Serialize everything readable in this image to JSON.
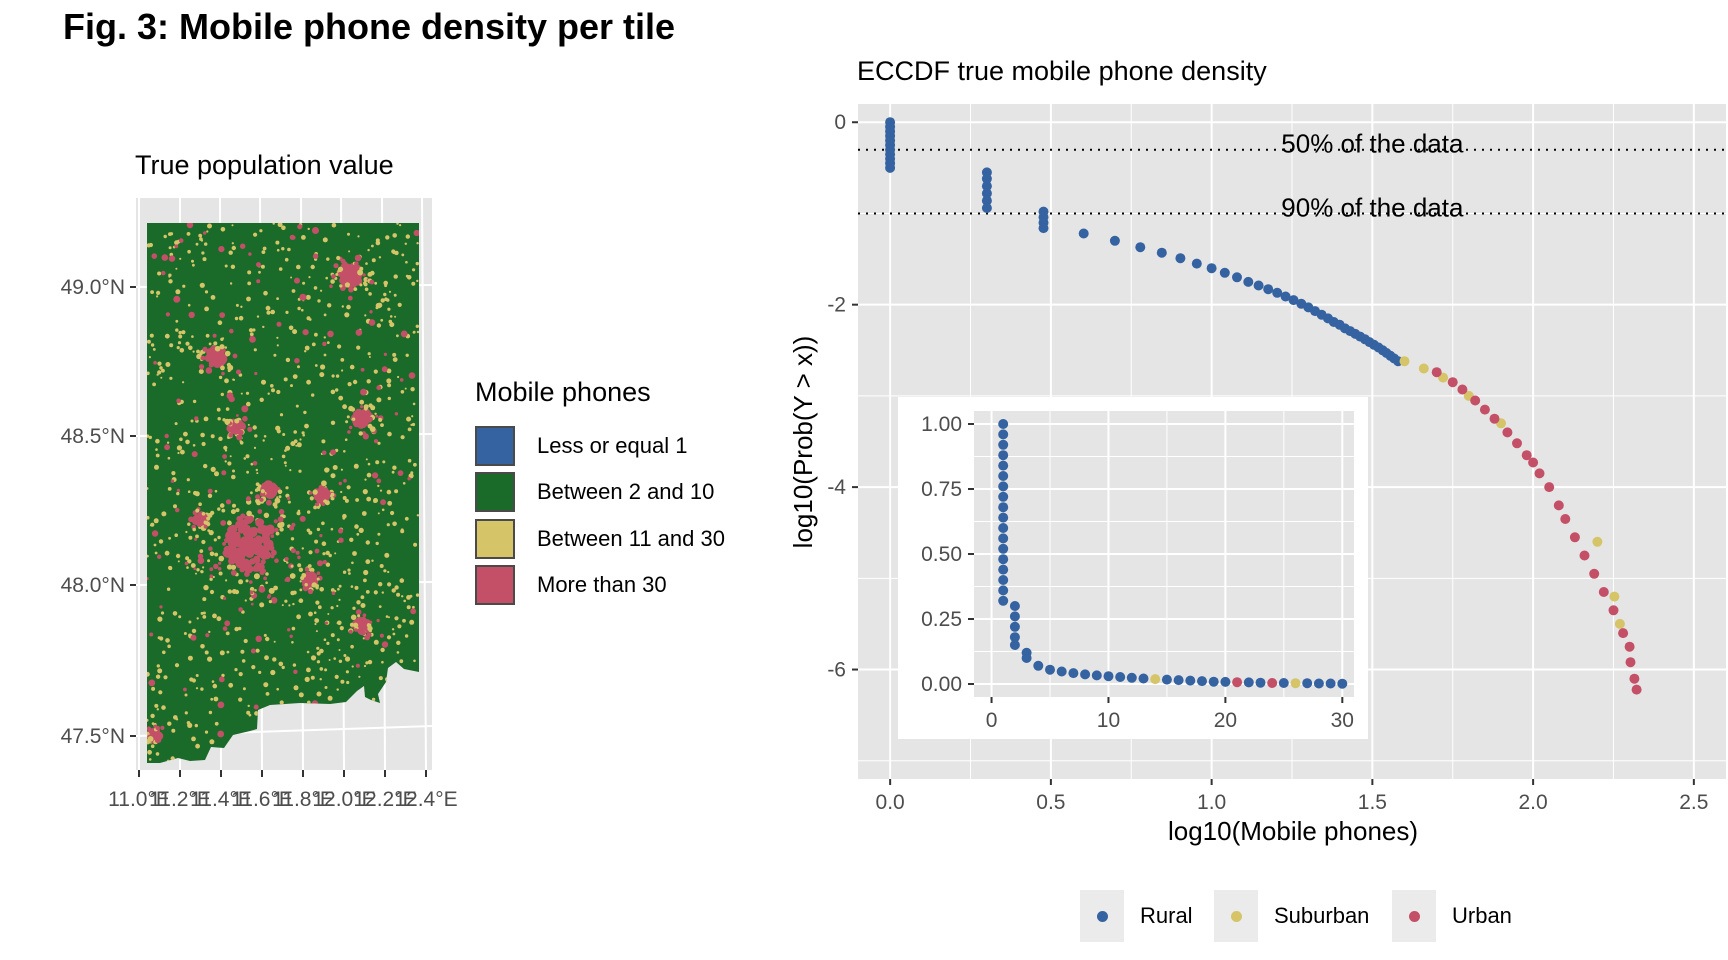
{
  "figure": {
    "title": "Fig. 3: Mobile phone density per tile"
  },
  "colors": {
    "panel_bg": "#e5e5e5",
    "grid": "#ffffff",
    "rural": "#3563a1",
    "rural_alt": "#3f6aa8",
    "green": "#1a6b2a",
    "suburban": "#d6c468",
    "urban": "#c45068",
    "swatch_border": "#4a4a4a"
  },
  "map": {
    "title": "True population value",
    "lat_labels": [
      "49.0°N",
      "48.5°N",
      "48.0°N",
      "47.5°N"
    ],
    "lon_labels": [
      "11.0°E",
      "11.2°E",
      "11.4°E",
      "11.6°E",
      "11.8°E",
      "12.0°E",
      "12.2°E",
      "12.4°E"
    ],
    "legend": {
      "title": "Mobile phones",
      "items": [
        {
          "label": "Less or equal 1",
          "color": "#3563a1"
        },
        {
          "label": "Between 2 and 10",
          "color": "#1a6b2a"
        },
        {
          "label": "Between 11 and 30",
          "color": "#d6c468"
        },
        {
          "label": "More than 30",
          "color": "#c45068"
        }
      ]
    }
  },
  "chart_data": [
    {
      "type": "scatter",
      "title": "ECCDF true mobile phone density",
      "xlabel": "log10(Mobile phones)",
      "ylabel": "log10(Prob(Y > x))",
      "xlim": [
        -0.1,
        2.6
      ],
      "ylim": [
        -7.2,
        0.2
      ],
      "x_ticks": [
        "0.0",
        "0.5",
        "1.0",
        "1.5",
        "2.0",
        "2.5"
      ],
      "x_tick_values": [
        0,
        0.5,
        1.0,
        1.5,
        2.0,
        2.5
      ],
      "y_ticks": [
        "0",
        "-2",
        "-4",
        "-6"
      ],
      "y_tick_values": [
        0,
        -2,
        -4,
        -6
      ],
      "grid": true,
      "annotations": [
        {
          "label": "50% of the data",
          "y": -0.301,
          "x": 1.5
        },
        {
          "label": "90% of the data",
          "y": -1.0,
          "x": 1.5
        }
      ],
      "legend": {
        "position": "bottom",
        "entries": [
          "Rural",
          "Suburban",
          "Urban"
        ]
      },
      "series": [
        {
          "name": "Rural",
          "color": "#3563a1",
          "points": [
            [
              0,
              0
            ],
            [
              0,
              -0.05
            ],
            [
              0,
              -0.1
            ],
            [
              0,
              -0.15
            ],
            [
              0,
              -0.2
            ],
            [
              0,
              -0.25
            ],
            [
              0,
              -0.3
            ],
            [
              0,
              -0.35
            ],
            [
              0,
              -0.4
            ],
            [
              0,
              -0.45
            ],
            [
              0,
              -0.5
            ],
            [
              0.301,
              -0.55
            ],
            [
              0.301,
              -0.62
            ],
            [
              0.301,
              -0.7
            ],
            [
              0.301,
              -0.78
            ],
            [
              0.301,
              -0.86
            ],
            [
              0.301,
              -0.94
            ],
            [
              0.477,
              -0.98
            ],
            [
              0.477,
              -1.04
            ],
            [
              0.477,
              -1.1
            ],
            [
              0.477,
              -1.16
            ],
            [
              0.602,
              -1.22
            ],
            [
              0.699,
              -1.3
            ],
            [
              0.778,
              -1.37
            ],
            [
              0.845,
              -1.43
            ],
            [
              0.903,
              -1.49
            ],
            [
              0.954,
              -1.55
            ],
            [
              1.0,
              -1.6
            ],
            [
              1.041,
              -1.65
            ],
            [
              1.079,
              -1.7
            ],
            [
              1.114,
              -1.75
            ],
            [
              1.146,
              -1.79
            ],
            [
              1.176,
              -1.83
            ],
            [
              1.204,
              -1.87
            ],
            [
              1.23,
              -1.91
            ],
            [
              1.255,
              -1.95
            ],
            [
              1.279,
              -1.99
            ],
            [
              1.301,
              -2.03
            ],
            [
              1.322,
              -2.07
            ],
            [
              1.342,
              -2.11
            ],
            [
              1.362,
              -2.15
            ],
            [
              1.38,
              -2.19
            ],
            [
              1.398,
              -2.22
            ],
            [
              1.415,
              -2.26
            ],
            [
              1.431,
              -2.29
            ],
            [
              1.447,
              -2.32
            ],
            [
              1.462,
              -2.35
            ],
            [
              1.477,
              -2.38
            ],
            [
              1.491,
              -2.41
            ],
            [
              1.505,
              -2.44
            ],
            [
              1.519,
              -2.47
            ],
            [
              1.532,
              -2.5
            ],
            [
              1.544,
              -2.53
            ],
            [
              1.556,
              -2.56
            ],
            [
              1.568,
              -2.59
            ],
            [
              1.58,
              -2.62
            ]
          ]
        },
        {
          "name": "Suburban",
          "color": "#d6c468",
          "points": [
            [
              1.6,
              -2.62
            ],
            [
              1.66,
              -2.7
            ],
            [
              1.72,
              -2.8
            ],
            [
              1.8,
              -3.0
            ],
            [
              1.9,
              -3.3
            ],
            [
              2.2,
              -4.6
            ],
            [
              2.253,
              -5.2
            ],
            [
              2.27,
              -5.5
            ]
          ]
        },
        {
          "name": "Urban",
          "color": "#c45068",
          "points": [
            [
              1.7,
              -2.74
            ],
            [
              1.75,
              -2.85
            ],
            [
              1.78,
              -2.93
            ],
            [
              1.82,
              -3.05
            ],
            [
              1.85,
              -3.15
            ],
            [
              1.88,
              -3.25
            ],
            [
              1.92,
              -3.4
            ],
            [
              1.95,
              -3.52
            ],
            [
              1.98,
              -3.65
            ],
            [
              2.0,
              -3.73
            ],
            [
              2.02,
              -3.85
            ],
            [
              2.05,
              -4.0
            ],
            [
              2.08,
              -4.2
            ],
            [
              2.1,
              -4.35
            ],
            [
              2.13,
              -4.55
            ],
            [
              2.16,
              -4.75
            ],
            [
              2.19,
              -4.95
            ],
            [
              2.22,
              -5.15
            ],
            [
              2.25,
              -5.35
            ],
            [
              2.28,
              -5.6
            ],
            [
              2.3,
              -5.75
            ],
            [
              2.303,
              -5.92
            ],
            [
              2.315,
              -6.1
            ],
            [
              2.322,
              -6.22
            ]
          ]
        }
      ]
    },
    {
      "type": "scatter",
      "title": "",
      "xlabel": "",
      "ylabel": "",
      "xlim": [
        -1.5,
        31
      ],
      "ylim": [
        -0.05,
        1.05
      ],
      "x_ticks": [
        "0",
        "10",
        "20",
        "30"
      ],
      "x_tick_values": [
        0,
        10,
        20,
        30
      ],
      "y_ticks": [
        "1.00",
        "0.75",
        "0.50",
        "0.25",
        "0.00"
      ],
      "y_tick_values": [
        1.0,
        0.75,
        0.5,
        0.25,
        0.0
      ],
      "grid": true,
      "series": [
        {
          "name": "Rural",
          "color": "#3563a1",
          "points": [
            [
              1,
              1.0
            ],
            [
              1,
              0.96
            ],
            [
              1,
              0.92
            ],
            [
              1,
              0.88
            ],
            [
              1,
              0.84
            ],
            [
              1,
              0.8
            ],
            [
              1,
              0.76
            ],
            [
              1,
              0.72
            ],
            [
              1,
              0.68
            ],
            [
              1,
              0.64
            ],
            [
              1,
              0.6
            ],
            [
              1,
              0.56
            ],
            [
              1,
              0.52
            ],
            [
              1,
              0.48
            ],
            [
              1,
              0.44
            ],
            [
              1,
              0.4
            ],
            [
              1,
              0.36
            ],
            [
              1,
              0.32
            ],
            [
              2,
              0.3
            ],
            [
              2,
              0.26
            ],
            [
              2,
              0.22
            ],
            [
              2,
              0.18
            ],
            [
              2,
              0.15
            ],
            [
              3,
              0.12
            ],
            [
              3,
              0.1
            ],
            [
              4,
              0.07
            ],
            [
              5,
              0.055
            ],
            [
              6,
              0.048
            ],
            [
              7,
              0.042
            ],
            [
              8,
              0.037
            ],
            [
              9,
              0.033
            ],
            [
              10,
              0.03
            ],
            [
              11,
              0.027
            ],
            [
              12,
              0.024
            ],
            [
              13,
              0.021
            ],
            [
              15,
              0.017
            ],
            [
              16,
              0.015
            ],
            [
              17,
              0.013
            ],
            [
              18,
              0.011
            ],
            [
              19,
              0.009
            ],
            [
              20,
              0.008
            ],
            [
              22,
              0.006
            ],
            [
              23,
              0.005
            ],
            [
              25,
              0.004
            ],
            [
              27,
              0.003
            ],
            [
              28,
              0.002
            ],
            [
              29,
              0.002
            ],
            [
              30,
              0.001
            ]
          ]
        },
        {
          "name": "Suburban",
          "color": "#d6c468",
          "points": [
            [
              14,
              0.019
            ],
            [
              26,
              0.003
            ]
          ]
        },
        {
          "name": "Urban",
          "color": "#c45068",
          "points": [
            [
              21,
              0.007
            ],
            [
              24,
              0.004
            ]
          ]
        }
      ]
    }
  ]
}
